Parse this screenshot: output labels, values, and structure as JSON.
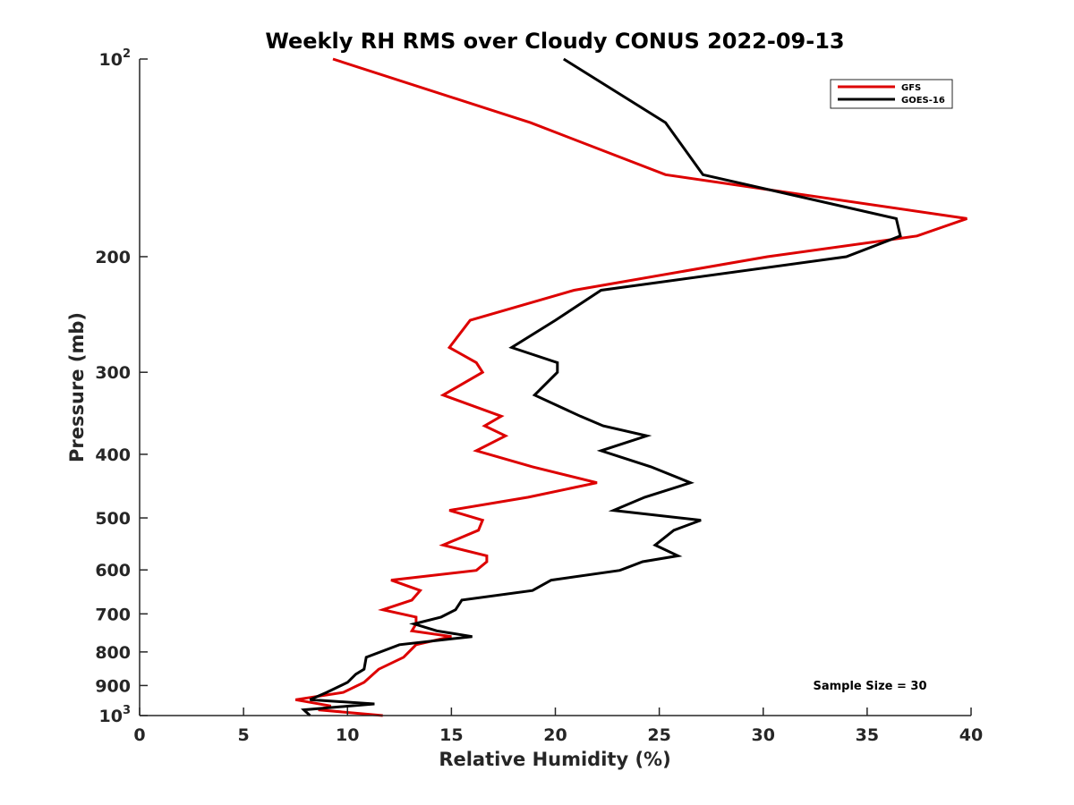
{
  "chart_data": {
    "type": "line",
    "title": "Weekly RH RMS over Cloudy CONUS 2022-09-13",
    "xlabel": "Relative Humidity (%)",
    "ylabel": "Pressure (mb)",
    "xlim": [
      0,
      40
    ],
    "ylim": [
      100,
      1000
    ],
    "yscale": "log",
    "y_reversed": true,
    "grid": false,
    "legend_position": "top-right",
    "x_ticks": [
      0,
      5,
      10,
      15,
      20,
      25,
      30,
      35,
      40
    ],
    "y_ticks": [
      {
        "value": 100,
        "label": "10",
        "sup": "2"
      },
      {
        "value": 200,
        "label": "200"
      },
      {
        "value": 300,
        "label": "300"
      },
      {
        "value": 400,
        "label": "400"
      },
      {
        "value": 500,
        "label": "500"
      },
      {
        "value": 600,
        "label": "600"
      },
      {
        "value": 700,
        "label": "700"
      },
      {
        "value": 800,
        "label": "800"
      },
      {
        "value": 900,
        "label": "900"
      },
      {
        "value": 1000,
        "label": "10",
        "sup": "3"
      }
    ],
    "annotations": [
      "Sample Size = 30"
    ],
    "series": [
      {
        "name": "GFS",
        "color": "#dd0000",
        "points": [
          [
            9.3,
            100
          ],
          [
            18.8,
            125
          ],
          [
            25.3,
            150
          ],
          [
            39.8,
            175
          ],
          [
            37.4,
            186
          ],
          [
            30.2,
            200
          ],
          [
            20.9,
            225
          ],
          [
            15.9,
            250
          ],
          [
            14.9,
            275
          ],
          [
            16.2,
            290
          ],
          [
            16.5,
            300
          ],
          [
            14.6,
            325
          ],
          [
            17.4,
            350
          ],
          [
            16.6,
            362
          ],
          [
            17.6,
            375
          ],
          [
            16.2,
            395
          ],
          [
            18.9,
            418
          ],
          [
            22.0,
            442
          ],
          [
            18.7,
            465
          ],
          [
            14.9,
            487
          ],
          [
            16.5,
            504
          ],
          [
            16.3,
            522
          ],
          [
            14.6,
            550
          ],
          [
            16.7,
            571
          ],
          [
            16.7,
            583
          ],
          [
            16.2,
            601
          ],
          [
            12.1,
            622
          ],
          [
            13.5,
            645
          ],
          [
            13.1,
            667
          ],
          [
            11.7,
            690
          ],
          [
            13.3,
            708
          ],
          [
            13.3,
            725
          ],
          [
            13.1,
            743
          ],
          [
            15.0,
            758
          ],
          [
            13.3,
            780
          ],
          [
            12.7,
            815
          ],
          [
            11.5,
            850
          ],
          [
            10.8,
            890
          ],
          [
            9.8,
            922
          ],
          [
            7.5,
            946
          ],
          [
            9.2,
            967
          ],
          [
            8.6,
            980
          ],
          [
            11.7,
            1000
          ]
        ]
      },
      {
        "name": "GOES-16",
        "color": "#000000",
        "points": [
          [
            20.4,
            100
          ],
          [
            25.3,
            125
          ],
          [
            27.1,
            150
          ],
          [
            36.4,
            175
          ],
          [
            36.6,
            186
          ],
          [
            34.0,
            200
          ],
          [
            22.2,
            225
          ],
          [
            20.0,
            250
          ],
          [
            17.9,
            275
          ],
          [
            20.1,
            290
          ],
          [
            20.1,
            300
          ],
          [
            19.0,
            325
          ],
          [
            21.2,
            350
          ],
          [
            22.3,
            362
          ],
          [
            24.4,
            375
          ],
          [
            22.2,
            395
          ],
          [
            24.6,
            418
          ],
          [
            26.5,
            442
          ],
          [
            24.3,
            465
          ],
          [
            22.8,
            487
          ],
          [
            27.0,
            504
          ],
          [
            25.7,
            522
          ],
          [
            24.8,
            550
          ],
          [
            25.9,
            571
          ],
          [
            24.2,
            583
          ],
          [
            23.1,
            601
          ],
          [
            19.8,
            622
          ],
          [
            18.9,
            645
          ],
          [
            15.5,
            667
          ],
          [
            15.2,
            690
          ],
          [
            14.5,
            708
          ],
          [
            13.2,
            725
          ],
          [
            14.3,
            743
          ],
          [
            16.0,
            758
          ],
          [
            12.5,
            780
          ],
          [
            10.9,
            815
          ],
          [
            10.8,
            850
          ],
          [
            10.4,
            865
          ],
          [
            10.0,
            890
          ],
          [
            9.0,
            922
          ],
          [
            8.2,
            946
          ],
          [
            11.3,
            960
          ],
          [
            7.9,
            980
          ],
          [
            8.2,
            1000
          ]
        ]
      }
    ]
  }
}
